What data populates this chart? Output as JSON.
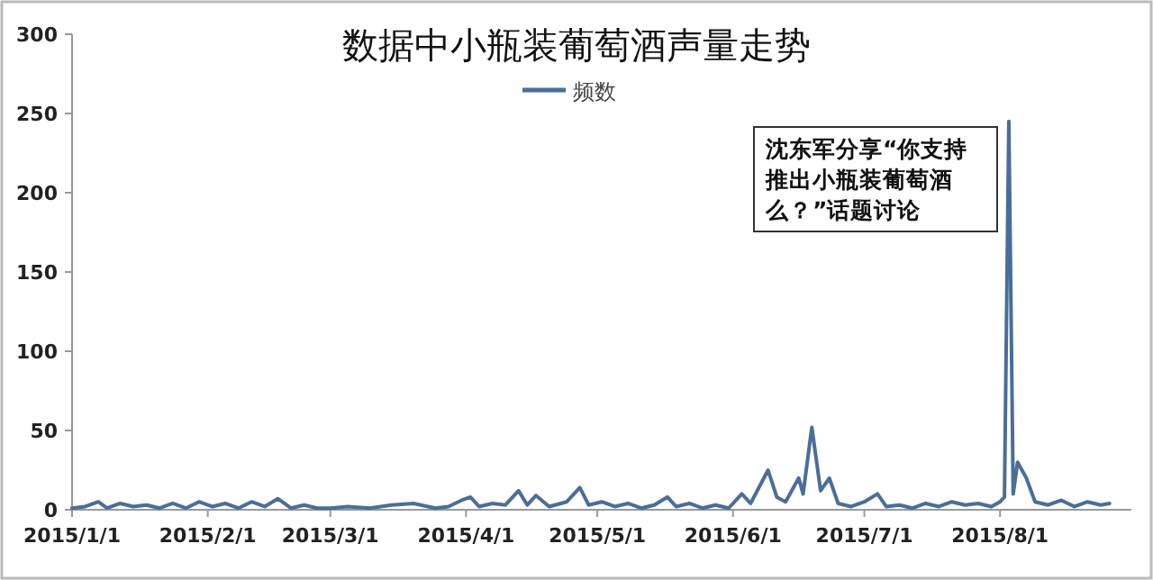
{
  "chart_data": {
    "type": "line",
    "title": "数据中小瓶装葡萄酒声量走势",
    "legend": "top",
    "x": [
      "2015-01-01",
      "2015-01-04",
      "2015-01-07",
      "2015-01-09",
      "2015-01-12",
      "2015-01-15",
      "2015-01-18",
      "2015-01-21",
      "2015-01-24",
      "2015-01-27",
      "2015-01-30",
      "2015-02-02",
      "2015-02-05",
      "2015-02-08",
      "2015-02-11",
      "2015-02-14",
      "2015-02-17",
      "2015-02-20",
      "2015-02-23",
      "2015-02-26",
      "2015-03-01",
      "2015-03-05",
      "2015-03-10",
      "2015-03-15",
      "2015-03-20",
      "2015-03-25",
      "2015-03-28",
      "2015-03-31",
      "2015-04-02",
      "2015-04-04",
      "2015-04-07",
      "2015-04-10",
      "2015-04-13",
      "2015-04-15",
      "2015-04-17",
      "2015-04-20",
      "2015-04-24",
      "2015-04-27",
      "2015-04-29",
      "2015-05-02",
      "2015-05-05",
      "2015-05-08",
      "2015-05-11",
      "2015-05-14",
      "2015-05-17",
      "2015-05-19",
      "2015-05-22",
      "2015-05-25",
      "2015-05-28",
      "2015-05-31",
      "2015-06-03",
      "2015-06-05",
      "2015-06-09",
      "2015-06-11",
      "2015-06-13",
      "2015-06-16",
      "2015-06-17",
      "2015-06-19",
      "2015-06-21",
      "2015-06-23",
      "2015-06-25",
      "2015-06-28",
      "2015-07-01",
      "2015-07-04",
      "2015-07-06",
      "2015-07-09",
      "2015-07-12",
      "2015-07-15",
      "2015-07-18",
      "2015-07-21",
      "2015-07-24",
      "2015-07-27",
      "2015-07-30",
      "2015-08-01",
      "2015-08-02",
      "2015-08-03",
      "2015-08-04",
      "2015-08-05",
      "2015-08-07",
      "2015-08-09",
      "2015-08-12",
      "2015-08-15",
      "2015-08-18",
      "2015-08-21",
      "2015-08-24",
      "2015-08-26"
    ],
    "series": [
      {
        "name": "频数",
        "color": "#4a6e9a",
        "values": [
          1,
          2,
          5,
          1,
          4,
          2,
          3,
          1,
          4,
          1,
          5,
          2,
          4,
          1,
          5,
          2,
          7,
          1,
          3,
          1,
          1,
          2,
          1,
          3,
          4,
          1,
          2,
          6,
          8,
          2,
          4,
          3,
          12,
          3,
          9,
          2,
          5,
          14,
          3,
          5,
          2,
          4,
          1,
          3,
          8,
          2,
          4,
          1,
          3,
          1,
          10,
          4,
          25,
          8,
          5,
          20,
          10,
          52,
          12,
          20,
          4,
          2,
          5,
          10,
          2,
          3,
          1,
          4,
          2,
          5,
          3,
          4,
          2,
          5,
          8,
          245,
          10,
          30,
          20,
          5,
          3,
          6,
          2,
          5,
          3,
          4
        ]
      }
    ],
    "xlim": [
      "2015-01-01",
      "2015-08-31"
    ],
    "xticks": [
      {
        "value": "2015-01-01",
        "label": "2015/1/1"
      },
      {
        "value": "2015-02-01",
        "label": "2015/2/1"
      },
      {
        "value": "2015-03-01",
        "label": "2015/3/1"
      },
      {
        "value": "2015-04-01",
        "label": "2015/4/1"
      },
      {
        "value": "2015-05-01",
        "label": "2015/5/1"
      },
      {
        "value": "2015-06-01",
        "label": "2015/6/1"
      },
      {
        "value": "2015-07-01",
        "label": "2015/7/1"
      },
      {
        "value": "2015-08-01",
        "label": "2015/8/1"
      }
    ],
    "ylim": [
      0,
      300
    ],
    "yticks": [
      0,
      50,
      100,
      150,
      200,
      250,
      300
    ],
    "grid": false,
    "marker": "none",
    "line_style": "solid",
    "annotations": [
      "沈东军分享“你支持推出小瓶装葡萄酒么？”话题讨论"
    ]
  }
}
